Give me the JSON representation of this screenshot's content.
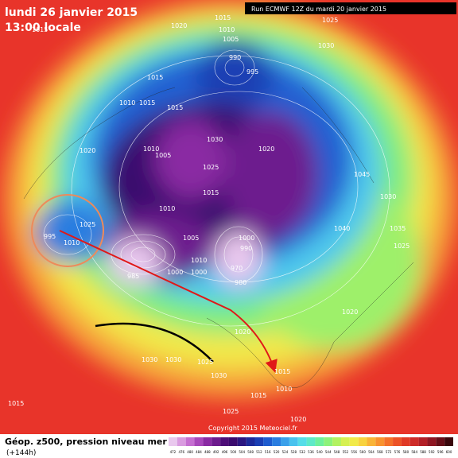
{
  "header": {
    "date": "lundi 26 janvier 2015",
    "time": "13:00 locale",
    "run": "Run ECMWF 12Z du mardi 20 janvier 2015"
  },
  "map": {
    "isobar_labels": [
      "1015",
      "1020",
      "1010",
      "1005",
      "990",
      "995",
      "1030",
      "1025",
      "1015",
      "1010",
      "1015",
      "1020",
      "1005",
      "1010",
      "1030",
      "1015",
      "1020",
      "1025",
      "1045",
      "1030",
      "1035",
      "1040",
      "1025",
      "1010",
      "995",
      "1010",
      "1000",
      "985",
      "1000",
      "990",
      "970",
      "980",
      "1010",
      "1000",
      "1005",
      "1015",
      "1030",
      "1030",
      "1025",
      "1030",
      "1020",
      "1015",
      "1010",
      "1015",
      "1025",
      "1020",
      "1015",
      "1015",
      "1025",
      "1020"
    ],
    "copyright": "Copyright 2015 Meteociel.fr"
  },
  "footer": {
    "title": "Géop. z500, pression niveau mer",
    "lead": "(+144h)",
    "colorbar": {
      "labels": [
        "472",
        "476",
        "480",
        "484",
        "488",
        "492",
        "496",
        "500",
        "504",
        "508",
        "512",
        "516",
        "520",
        "524",
        "528",
        "532",
        "536",
        "540",
        "544",
        "548",
        "552",
        "556",
        "560",
        "564",
        "568",
        "572",
        "576",
        "580",
        "584",
        "588",
        "592",
        "596",
        "600"
      ],
      "colors": [
        "#e9c8ee",
        "#d99be0",
        "#c56ed1",
        "#a847bb",
        "#8a2aa3",
        "#6d1b8e",
        "#4d0d78",
        "#3a0a6e",
        "#2a1680",
        "#1c2a9a",
        "#1a3fb4",
        "#1e5ccf",
        "#2a7de0",
        "#3aa0ea",
        "#48c2ee",
        "#55dde8",
        "#5ee9c8",
        "#6ef09c",
        "#8cf27a",
        "#b2f260",
        "#d6f052",
        "#f1ea4a",
        "#f8d340",
        "#f9b438",
        "#f89330",
        "#f4712a",
        "#ec5226",
        "#e03a26",
        "#ce2b28",
        "#b21f26",
        "#8e1622",
        "#660e18",
        "#3a070c"
      ]
    }
  }
}
